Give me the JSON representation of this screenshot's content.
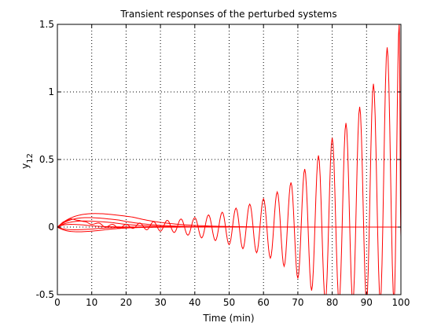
{
  "chart_data": {
    "type": "line",
    "title": "Transient responses of the perturbed systems",
    "xlabel": "Time (min)",
    "ylabel": "y",
    "ylabel_subscript": "12",
    "xlim": [
      0,
      100
    ],
    "ylim": [
      -0.5,
      1.5
    ],
    "xticks": [
      0,
      10,
      20,
      30,
      40,
      50,
      60,
      70,
      80,
      90,
      100
    ],
    "yticks": [
      -0.5,
      0,
      0.5,
      1,
      1.5
    ],
    "xtick_labels": [
      "0",
      "10",
      "20",
      "30",
      "40",
      "50",
      "60",
      "70",
      "80",
      "90",
      "100"
    ],
    "ytick_labels": [
      "-0.5",
      "0",
      "0.5",
      "1",
      "1.5"
    ],
    "grid": true,
    "line_color": "#ff0000",
    "series": [
      {
        "stable": true,
        "peak": 0.1,
        "t_peak": 11,
        "decay": 8
      },
      {
        "stable": true,
        "peak": 0.07,
        "t_peak": 9,
        "decay": 7
      },
      {
        "stable": true,
        "peak": 0.045,
        "t_peak": 8,
        "decay": 6
      },
      {
        "stable": true,
        "peak": -0.02,
        "t_peak": 5,
        "decay": 5
      },
      {
        "stable": true,
        "peak": -0.035,
        "t_peak": 6,
        "decay": 6
      },
      {
        "stable": true,
        "peak": 0.02,
        "t_peak": 4,
        "decay": 4
      },
      {
        "stable": false,
        "x": [
          0,
          2,
          4,
          6,
          8,
          10,
          12,
          14,
          16,
          18,
          20,
          22,
          24,
          26,
          28,
          30,
          32,
          34,
          36,
          38,
          40,
          42,
          44,
          46,
          48,
          50,
          52,
          54,
          56,
          58,
          60,
          62,
          64,
          66,
          68,
          70,
          72,
          74,
          76,
          78,
          80,
          82,
          84,
          86,
          88,
          90,
          92,
          94,
          96,
          98,
          99.5,
          100
        ],
        "y": [
          0,
          0.04,
          0.06,
          0.05,
          0.04,
          0.02,
          0.03,
          0.0,
          0.02,
          -0.01,
          0.02,
          -0.01,
          0.03,
          -0.02,
          0.04,
          -0.03,
          0.05,
          -0.04,
          0.06,
          -0.06,
          0.07,
          -0.08,
          0.09,
          -0.1,
          0.11,
          -0.13,
          0.14,
          -0.16,
          0.17,
          -0.19,
          0.21,
          -0.23,
          0.26,
          -0.29,
          0.33,
          -0.38,
          0.43,
          -0.47,
          0.53,
          -0.55,
          0.66,
          -0.55,
          0.77,
          -0.55,
          0.89,
          -0.55,
          1.06,
          -0.55,
          1.33,
          -0.55,
          1.5,
          -0.07
        ]
      }
    ]
  }
}
